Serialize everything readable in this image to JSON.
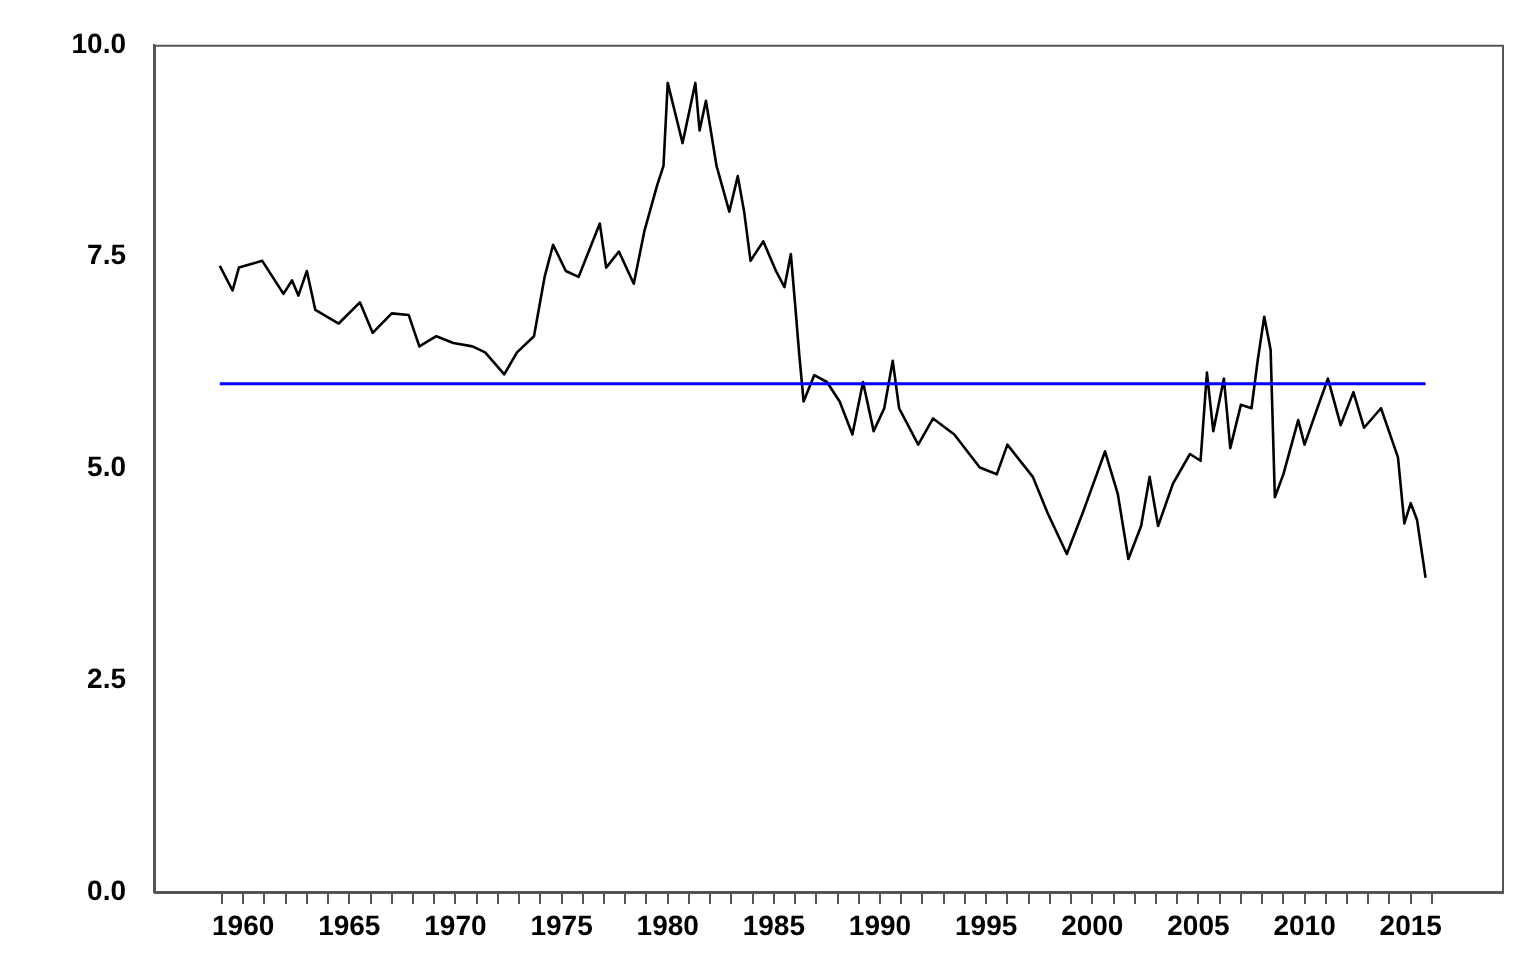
{
  "chart_data": {
    "type": "line",
    "xlim": [
      1955.8,
      2019.3
    ],
    "xticks": [
      {
        "value": 1959,
        "label": null
      },
      {
        "value": 1960,
        "label": "1960"
      },
      {
        "value": 1961,
        "label": null
      },
      {
        "value": 1962,
        "label": null
      },
      {
        "value": 1963,
        "label": null
      },
      {
        "value": 1964,
        "label": null
      },
      {
        "value": 1965,
        "label": "1965"
      },
      {
        "value": 1966,
        "label": null
      },
      {
        "value": 1967,
        "label": null
      },
      {
        "value": 1968,
        "label": null
      },
      {
        "value": 1969,
        "label": null
      },
      {
        "value": 1970,
        "label": "1970"
      },
      {
        "value": 1971,
        "label": null
      },
      {
        "value": 1972,
        "label": null
      },
      {
        "value": 1973,
        "label": null
      },
      {
        "value": 1974,
        "label": null
      },
      {
        "value": 1975,
        "label": "1975"
      },
      {
        "value": 1976,
        "label": null
      },
      {
        "value": 1977,
        "label": null
      },
      {
        "value": 1978,
        "label": null
      },
      {
        "value": 1979,
        "label": null
      },
      {
        "value": 1980,
        "label": "1980"
      },
      {
        "value": 1981,
        "label": null
      },
      {
        "value": 1982,
        "label": null
      },
      {
        "value": 1983,
        "label": null
      },
      {
        "value": 1984,
        "label": null
      },
      {
        "value": 1985,
        "label": "1985"
      },
      {
        "value": 1986,
        "label": null
      },
      {
        "value": 1987,
        "label": null
      },
      {
        "value": 1988,
        "label": null
      },
      {
        "value": 1989,
        "label": null
      },
      {
        "value": 1990,
        "label": "1990"
      },
      {
        "value": 1991,
        "label": null
      },
      {
        "value": 1992,
        "label": null
      },
      {
        "value": 1993,
        "label": null
      },
      {
        "value": 1994,
        "label": null
      },
      {
        "value": 1995,
        "label": "1995"
      },
      {
        "value": 1996,
        "label": null
      },
      {
        "value": 1997,
        "label": null
      },
      {
        "value": 1998,
        "label": null
      },
      {
        "value": 1999,
        "label": null
      },
      {
        "value": 2000,
        "label": "2000"
      },
      {
        "value": 2001,
        "label": null
      },
      {
        "value": 2002,
        "label": null
      },
      {
        "value": 2003,
        "label": null
      },
      {
        "value": 2004,
        "label": null
      },
      {
        "value": 2005,
        "label": "2005"
      },
      {
        "value": 2006,
        "label": null
      },
      {
        "value": 2007,
        "label": null
      },
      {
        "value": 2008,
        "label": null
      },
      {
        "value": 2009,
        "label": null
      },
      {
        "value": 2010,
        "label": "2010"
      },
      {
        "value": 2011,
        "label": null
      },
      {
        "value": 2012,
        "label": null
      },
      {
        "value": 2013,
        "label": null
      },
      {
        "value": 2014,
        "label": null
      },
      {
        "value": 2015,
        "label": "2015"
      },
      {
        "value": 2016,
        "label": null
      }
    ],
    "ylim": [
      0,
      10
    ],
    "yticks": [
      {
        "value": 0,
        "label": "0.0"
      },
      {
        "value": 2.5,
        "label": "2.5"
      },
      {
        "value": 5,
        "label": "5.0"
      },
      {
        "value": 7.5,
        "label": "7.5"
      },
      {
        "value": 10,
        "label": "10.0"
      }
    ],
    "grid": false,
    "legend": false,
    "marker": "none",
    "line_style": "solid",
    "ref_lines": [
      {
        "axis": "y",
        "value": 6,
        "color": "#0000ff"
      }
    ],
    "series": [
      {
        "color": "#000000",
        "x": [
          1958.9,
          1959.5,
          1959.8,
          1960.9,
          1961.9,
          1962.3,
          1962.6,
          1963.0,
          1963.4,
          1964.5,
          1965.5,
          1966.1,
          1967.0,
          1967.8,
          1968.3,
          1969.1,
          1969.9,
          1970.8,
          1971.4,
          1972.3,
          1972.9,
          1973.7,
          1974.2,
          1974.6,
          1975.2,
          1975.8,
          1976.8,
          1977.1,
          1977.7,
          1978.4,
          1978.9,
          1979.5,
          1979.8,
          1980.0,
          1980.7,
          1981.3,
          1981.5,
          1981.8,
          1982.3,
          1982.9,
          1983.3,
          1983.6,
          1983.9,
          1984.5,
          1985.1,
          1985.5,
          1985.8,
          1986.0,
          1986.2,
          1986.4,
          1986.9,
          1987.5,
          1988.1,
          1988.7,
          1989.2,
          1989.7,
          1990.2,
          1990.6,
          1990.9,
          1991.8,
          1992.5,
          1993.5,
          1994.7,
          1995.5,
          1996.0,
          1997.2,
          1997.9,
          1998.8,
          1999.6,
          2000.6,
          2001.2,
          2001.7,
          2002.3,
          2002.7,
          2003.1,
          2003.8,
          2004.6,
          2005.1,
          2005.4,
          2005.7,
          2006.2,
          2006.5,
          2007.0,
          2007.5,
          2007.8,
          2008.1,
          2008.4,
          2008.6,
          2009.0,
          2009.7,
          2010.0,
          2010.6,
          2011.1,
          2011.7,
          2012.3,
          2012.8,
          2013.6,
          2014.4,
          2014.7,
          2015.0,
          2015.3,
          2015.7
        ],
        "values": [
          7.39,
          7.1,
          7.37,
          7.45,
          7.06,
          7.22,
          7.04,
          7.33,
          6.87,
          6.71,
          6.96,
          6.6,
          6.83,
          6.81,
          6.44,
          6.56,
          6.48,
          6.44,
          6.37,
          6.11,
          6.37,
          6.56,
          7.26,
          7.64,
          7.33,
          7.26,
          7.89,
          7.37,
          7.56,
          7.18,
          7.8,
          8.34,
          8.57,
          9.55,
          8.84,
          9.55,
          8.99,
          9.34,
          8.57,
          8.03,
          8.45,
          8.03,
          7.45,
          7.68,
          7.33,
          7.14,
          7.53,
          6.94,
          6.33,
          5.79,
          6.1,
          6.02,
          5.79,
          5.4,
          6.02,
          5.44,
          5.71,
          6.27,
          5.71,
          5.28,
          5.59,
          5.4,
          5.01,
          4.93,
          5.28,
          4.9,
          4.47,
          3.99,
          4.51,
          5.2,
          4.7,
          3.93,
          4.32,
          4.9,
          4.32,
          4.82,
          5.17,
          5.09,
          6.13,
          5.44,
          6.06,
          5.24,
          5.75,
          5.71,
          6.29,
          6.79,
          6.4,
          4.66,
          4.93,
          5.57,
          5.28,
          5.71,
          6.06,
          5.51,
          5.9,
          5.48,
          5.71,
          5.13,
          4.35,
          4.59,
          4.39,
          3.71
        ]
      }
    ]
  }
}
